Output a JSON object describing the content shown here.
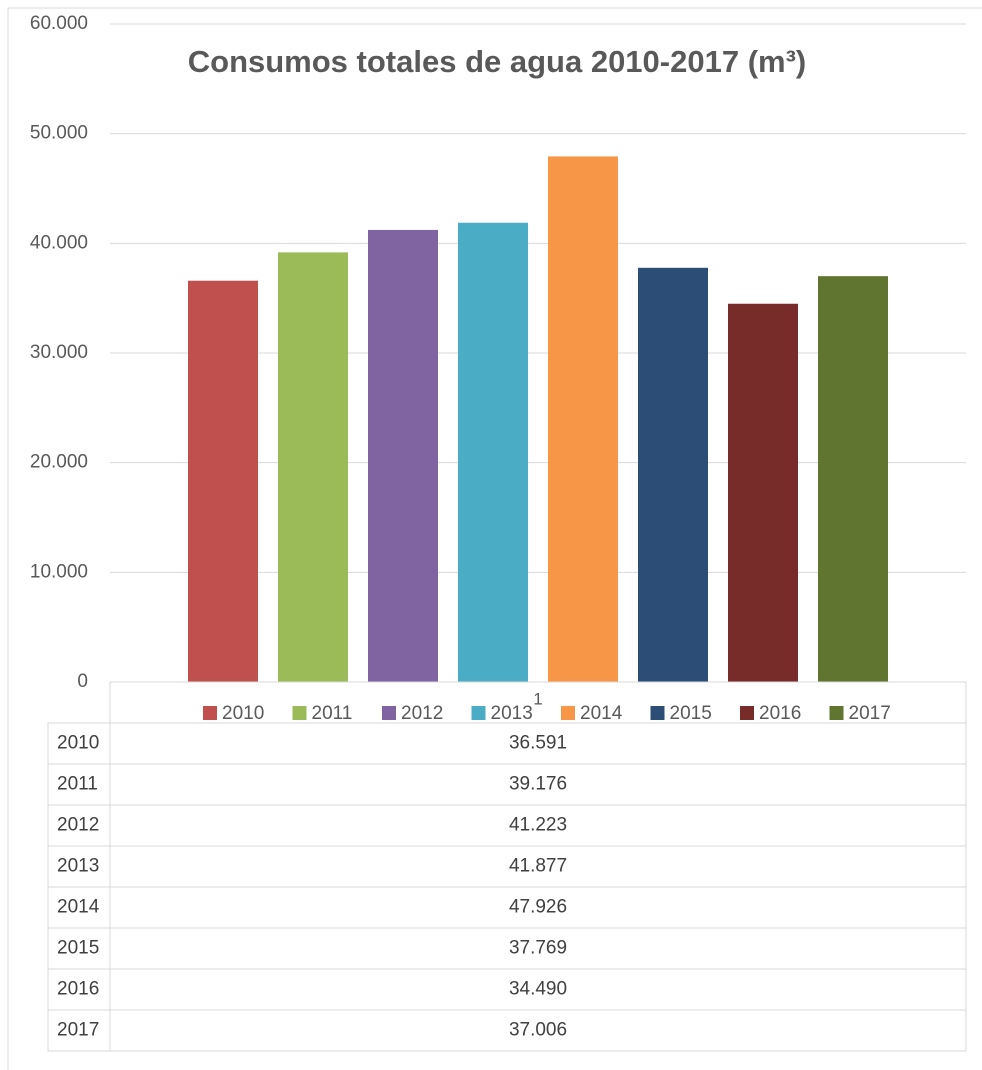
{
  "chart_data": {
    "type": "bar",
    "title": "Consumos totales de agua 2010-2017 (m³)",
    "categories": [
      "1"
    ],
    "series": [
      {
        "name": "2010",
        "color": "#c0504d",
        "values": [
          36591
        ],
        "value_labels": [
          "36.591"
        ]
      },
      {
        "name": "2011",
        "color": "#9bbb59",
        "values": [
          39176
        ],
        "value_labels": [
          "39.176"
        ]
      },
      {
        "name": "2012",
        "color": "#8064a2",
        "values": [
          41223
        ],
        "value_labels": [
          "41.223"
        ]
      },
      {
        "name": "2013",
        "color": "#4bacc6",
        "values": [
          41877
        ],
        "value_labels": [
          "41.877"
        ]
      },
      {
        "name": "2014",
        "color": "#f79646",
        "values": [
          47926
        ],
        "value_labels": [
          "47.926"
        ]
      },
      {
        "name": "2015",
        "color": "#2c4d75",
        "values": [
          37769
        ],
        "value_labels": [
          "37.769"
        ]
      },
      {
        "name": "2016",
        "color": "#772c2a",
        "values": [
          34490
        ],
        "value_labels": [
          "34.490"
        ]
      },
      {
        "name": "2017",
        "color": "#5f7530",
        "values": [
          37006
        ],
        "value_labels": [
          "37.006"
        ]
      }
    ],
    "ylim": [
      0,
      60000
    ],
    "yticks": [
      0,
      {
        "value": 10000,
        "label": "10.000"
      },
      {
        "value": 20000,
        "label": "20.000"
      },
      {
        "value": 30000,
        "label": "30.000"
      },
      {
        "value": 40000,
        "label": "40.000"
      },
      {
        "value": 50000,
        "label": "50.000"
      },
      {
        "value": 60000,
        "label": "60.000"
      }
    ],
    "grid": true,
    "legend": "bottom"
  }
}
